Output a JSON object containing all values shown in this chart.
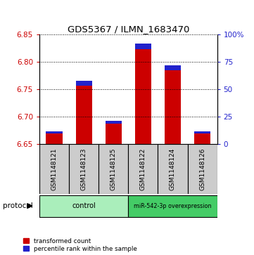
{
  "title": "GDS5367 / ILMN_1683470",
  "samples": [
    "GSM1148121",
    "GSM1148123",
    "GSM1148125",
    "GSM1148122",
    "GSM1148124",
    "GSM1148126"
  ],
  "transformed_count": [
    6.669,
    6.757,
    6.687,
    6.823,
    6.785,
    6.669
  ],
  "percentile_rank": [
    2.0,
    4.0,
    3.0,
    5.0,
    4.0,
    2.0
  ],
  "ymin": 6.65,
  "ymax": 6.85,
  "y_ticks_left": [
    6.65,
    6.7,
    6.75,
    6.8,
    6.85
  ],
  "y_ticks_right": [
    0,
    25,
    50,
    75,
    100
  ],
  "bar_color_red": "#CC0000",
  "bar_color_blue": "#2222CC",
  "control_color": "#AAEEBB",
  "mirna_color": "#44CC66",
  "legend_red": "transformed count",
  "legend_blue": "percentile rank within the sample",
  "protocol_label": "protocol",
  "background_color": "#FFFFFF",
  "sample_box_color": "#CCCCCC",
  "bar_width": 0.55
}
